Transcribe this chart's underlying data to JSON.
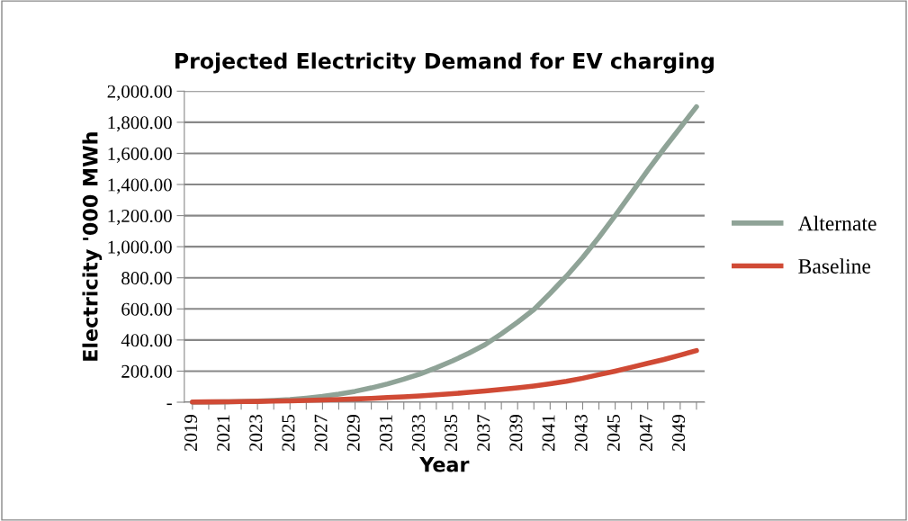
{
  "chart_data": {
    "type": "line",
    "title": "Projected Electricity Demand for EV charging",
    "xlabel": "Year",
    "ylabel": "Electricity '000 MWh",
    "categories": [
      "2019",
      null,
      "2021",
      null,
      "2023",
      null,
      "2025",
      null,
      "2027",
      null,
      "2029",
      null,
      "2031",
      null,
      "2033",
      null,
      "2035",
      null,
      "2037",
      null,
      "2039",
      null,
      "2041",
      null,
      "2043",
      null,
      "2045",
      null,
      "2047",
      null,
      "2049",
      null
    ],
    "series": [
      {
        "name": "Alternate",
        "color": "#8fa397",
        "values": [
          0,
          1,
          2,
          4,
          7,
          11,
          17,
          26,
          37,
          52,
          70,
          92,
          118,
          148,
          182,
          222,
          266,
          315,
          370,
          440,
          515,
          596,
          700,
          810,
          930,
          1060,
          1200,
          1345,
          1490,
          1630,
          1765,
          1900
        ]
      },
      {
        "name": "Baseline",
        "color": "#d04a35",
        "values": [
          1,
          2,
          3,
          4,
          5,
          7,
          9,
          11,
          14,
          17,
          21,
          25,
          30,
          35,
          41,
          48,
          55,
          63,
          72,
          82,
          92,
          104,
          118,
          134,
          154,
          177,
          200,
          225,
          250,
          275,
          303,
          332
        ]
      }
    ],
    "ylim": [
      0,
      2000
    ],
    "yticks": [
      {
        "value": 0,
        "label": "-"
      },
      {
        "value": 200,
        "label": "200.00"
      },
      {
        "value": 400,
        "label": "400.00"
      },
      {
        "value": 600,
        "label": "600.00"
      },
      {
        "value": 800,
        "label": "800.00"
      },
      {
        "value": 1000,
        "label": "1,000.00"
      },
      {
        "value": 1200,
        "label": "1,200.00"
      },
      {
        "value": 1400,
        "label": "1,400.00"
      },
      {
        "value": 1600,
        "label": "1,600.00"
      },
      {
        "value": 1800,
        "label": "1,800.00"
      },
      {
        "value": 2000,
        "label": "2,000.00"
      }
    ],
    "grid": "y",
    "legend": "right",
    "marker": "none",
    "line_style": "solid"
  }
}
